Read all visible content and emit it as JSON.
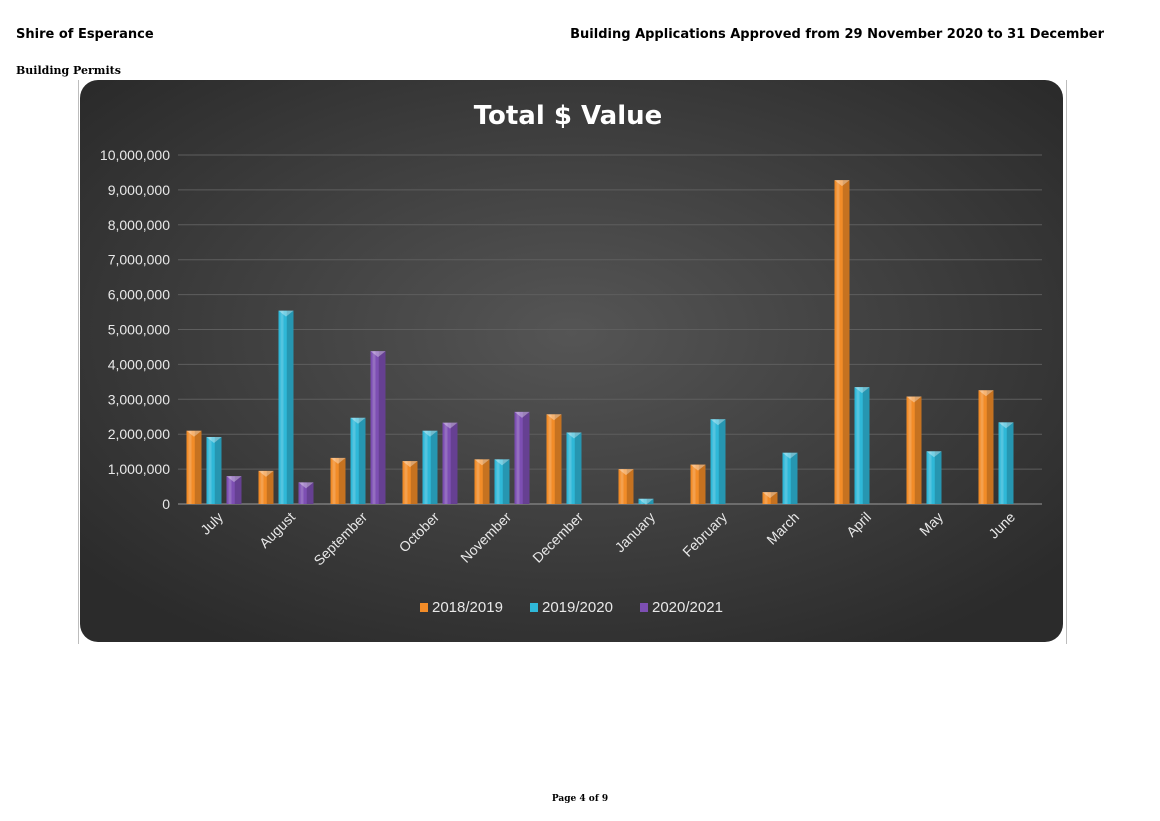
{
  "header": {
    "organisation": "Shire of Esperance",
    "report_title": "Building Applications Approved from 29 November 2020 to 31 December",
    "section": "Building Permits"
  },
  "footer": {
    "page_label": "Page 4 of 9"
  },
  "chart_data": {
    "type": "bar",
    "title": "Total $ Value",
    "xlabel": "",
    "ylabel": "",
    "categories": [
      "July",
      "August",
      "September",
      "October",
      "November",
      "December",
      "January",
      "February",
      "March",
      "April",
      "May",
      "June"
    ],
    "series": [
      {
        "name": "2018/2019",
        "color": "#f28c28",
        "values": [
          2100000,
          950000,
          1320000,
          1230000,
          1280000,
          2570000,
          1000000,
          1130000,
          340000,
          9280000,
          3080000,
          3260000
        ]
      },
      {
        "name": "2019/2020",
        "color": "#2fb8d8",
        "values": [
          1920000,
          5540000,
          2470000,
          2100000,
          1280000,
          2050000,
          150000,
          2430000,
          1470000,
          3350000,
          1510000,
          2340000
        ]
      },
      {
        "name": "2020/2021",
        "color": "#7d4fb3",
        "values": [
          800000,
          620000,
          4380000,
          2330000,
          2640000,
          null,
          null,
          null,
          null,
          null,
          null,
          null
        ]
      }
    ],
    "ylim": [
      0,
      10000000
    ],
    "y_ticks": [
      "0",
      "1,000,000",
      "2,000,000",
      "3,000,000",
      "4,000,000",
      "5,000,000",
      "6,000,000",
      "7,000,000",
      "8,000,000",
      "9,000,000",
      "10,000,000"
    ],
    "grid": true,
    "legend_position": "bottom",
    "background": "#3a3a3a"
  }
}
